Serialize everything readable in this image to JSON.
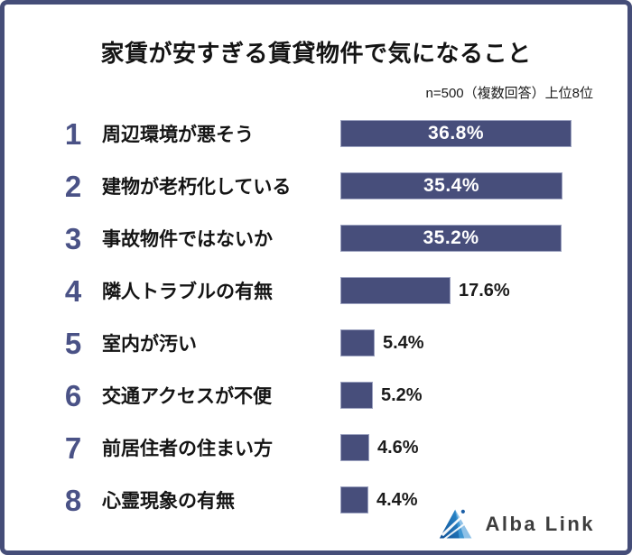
{
  "title": "家賃が安すぎる賃貸物件で気になること",
  "note": "n=500（複数回答）上位8位",
  "chart_data": {
    "type": "bar",
    "orientation": "horizontal",
    "title": "家賃が安すぎる賃貸物件で気になること",
    "annotation": "n=500（複数回答）上位8位",
    "ranks": [
      "1",
      "2",
      "3",
      "4",
      "5",
      "6",
      "7",
      "8"
    ],
    "categories": [
      "周辺環境が悪そう",
      "建物が老朽化している",
      "事故物件ではないか",
      "隣人トラブルの有無",
      "室内が汚い",
      "交通アクセスが不便",
      "前居住者の住まい方",
      "心霊現象の有無"
    ],
    "values": [
      36.8,
      35.4,
      35.2,
      17.6,
      5.4,
      5.2,
      4.6,
      4.4
    ],
    "value_labels": [
      "36.8%",
      "35.4%",
      "35.2%",
      "17.6%",
      "5.4%",
      "5.2%",
      "4.6%",
      "4.4%"
    ],
    "xlim": [
      0,
      40
    ],
    "grid": false,
    "legend": false,
    "value_label_inside_min": 30
  },
  "logo": {
    "text": "Alba Link"
  },
  "colors": {
    "frame_border": "#454d78",
    "bar_fill": "#474e7b",
    "bar_border": "#9ba1bf",
    "rank_number": "#4a5286",
    "category_text": "#141414",
    "value_inside_text": "#ffffff",
    "value_outside_text": "#1c1c1c",
    "logo_text": "#3d3d3d",
    "logo_blue_dark": "#15589f",
    "logo_blue_mid": "#3e96d2",
    "logo_blue_light": "#8ec1e7"
  }
}
